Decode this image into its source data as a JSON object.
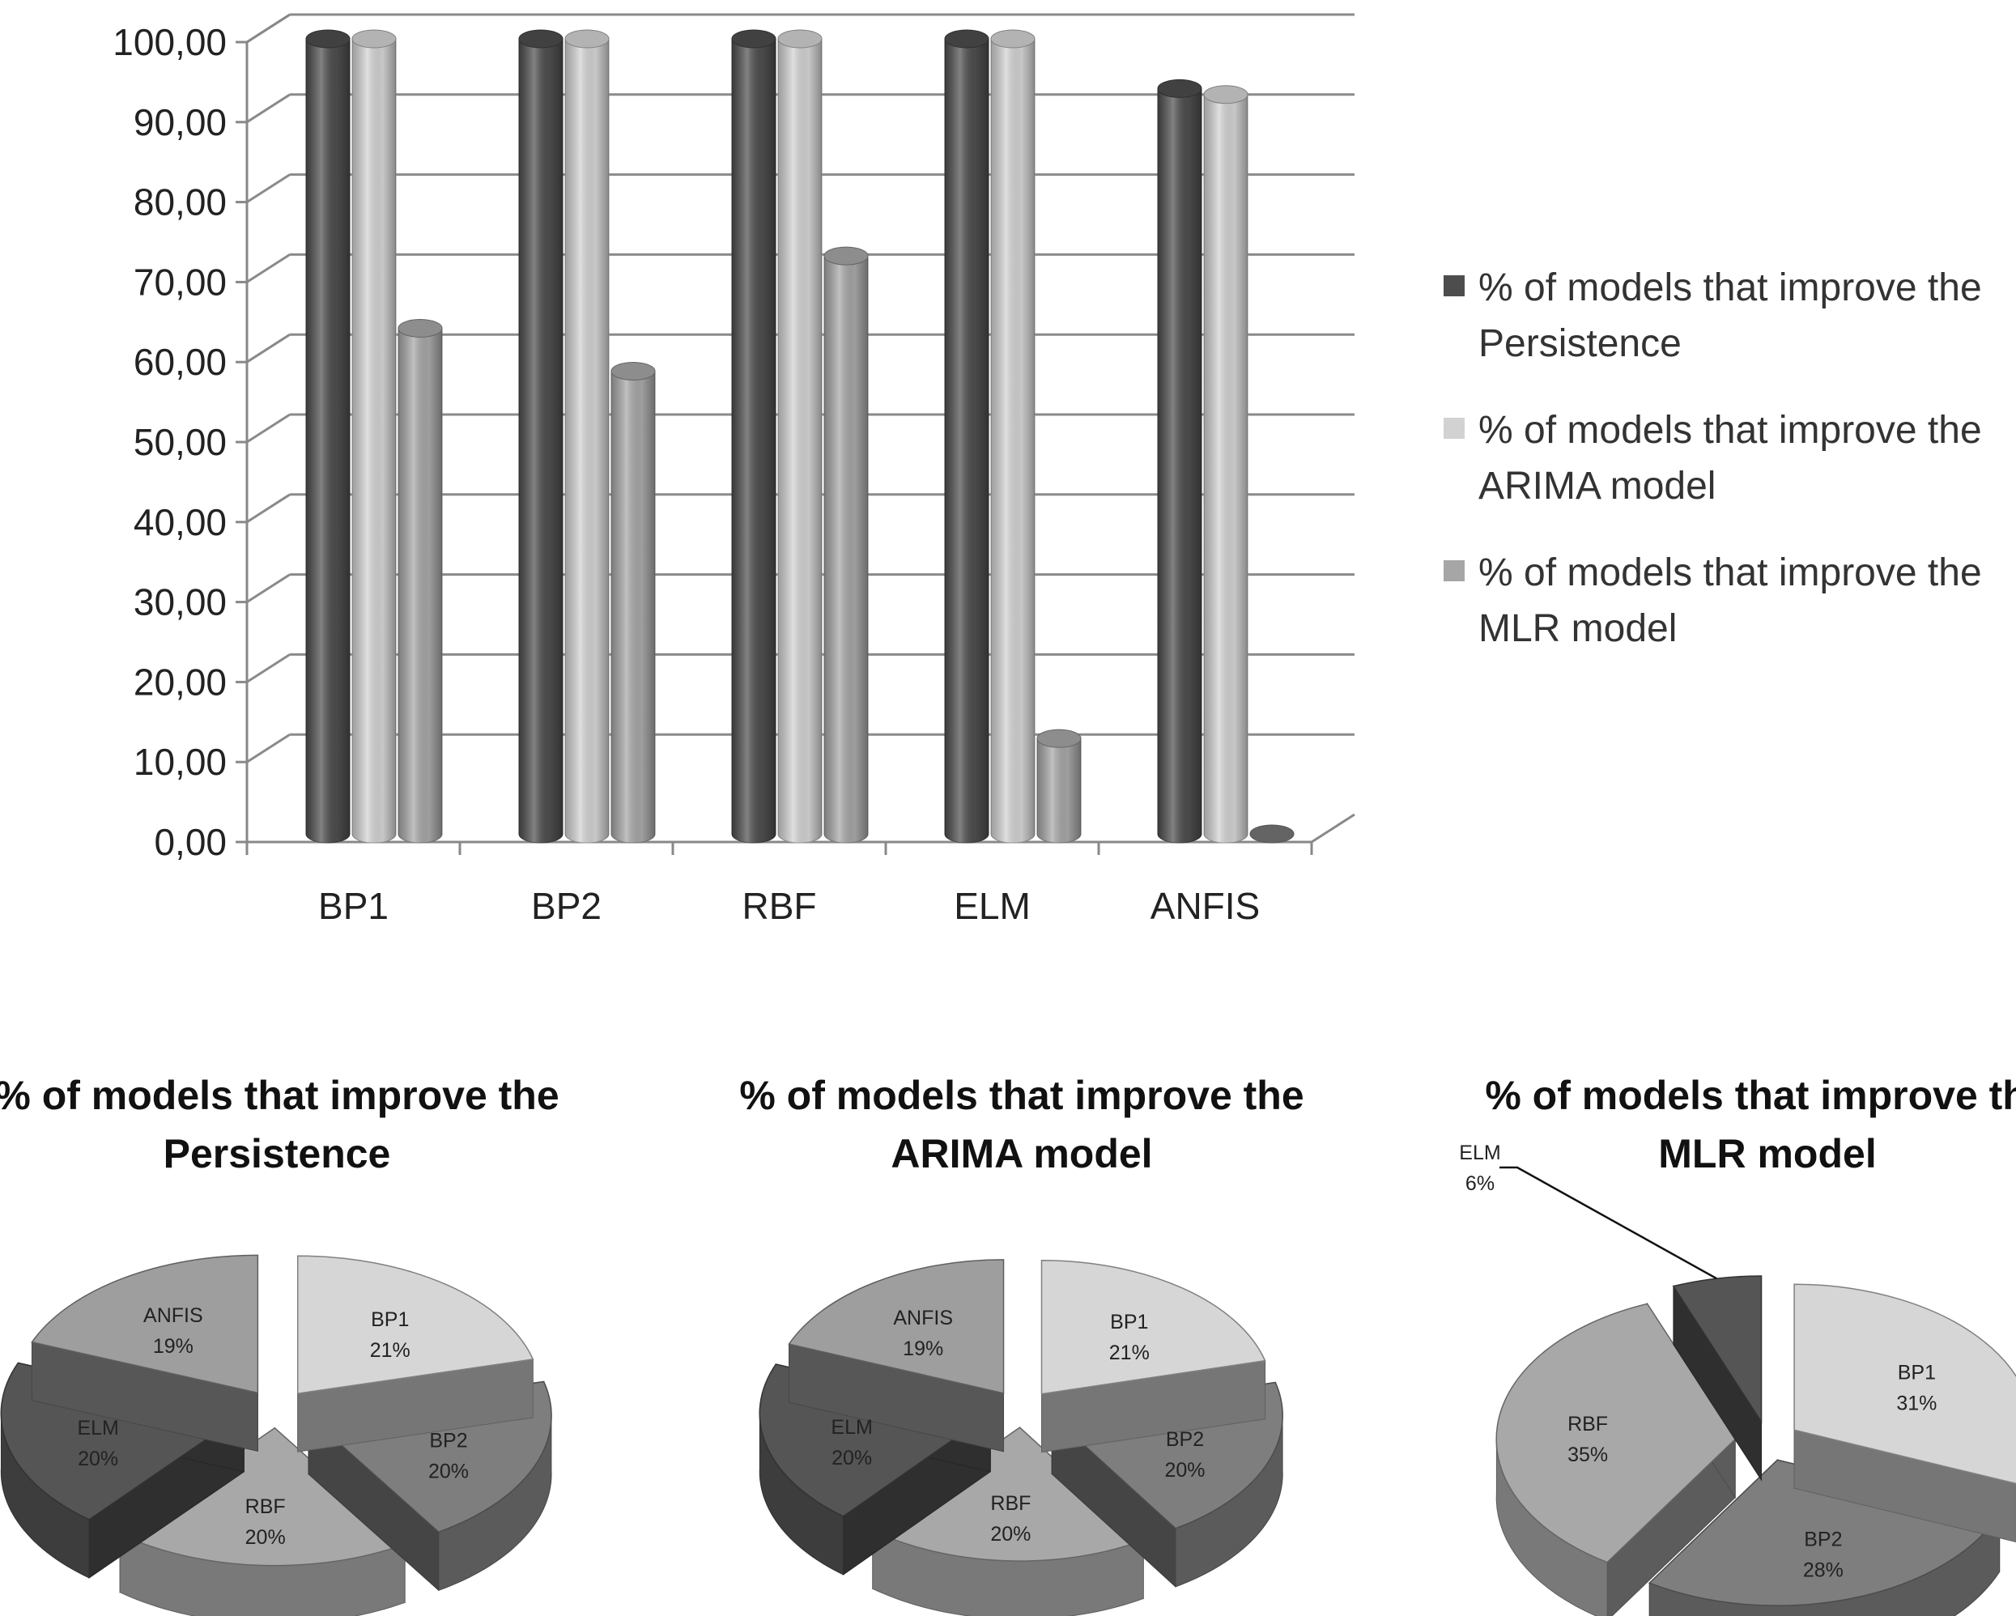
{
  "colors": {
    "series": [
      "#4d4d4d",
      "#d2d2d2",
      "#a6a6a6"
    ],
    "grid": "#8a8a8a",
    "pie_slices": {
      "BP1": "#d6d6d6",
      "BP2": "#7e7e7e",
      "RBF": "#a8a8a8",
      "ELM": "#555555",
      "ANFIS": "#9e9e9e"
    }
  },
  "chart_data": [
    {
      "type": "bar",
      "style": "3d-cylinder",
      "categories": [
        "BP1",
        "BP2",
        "RBF",
        "ELM",
        "ANFIS"
      ],
      "y_tick_labels": [
        "0,00",
        "10,00",
        "20,00",
        "30,00",
        "40,00",
        "50,00",
        "60,00",
        "70,00",
        "80,00",
        "90,00",
        "100,00"
      ],
      "ylim": [
        0,
        100
      ],
      "grid": true,
      "legend_position": "right",
      "series": [
        {
          "name": "% of models that improve the Persistence",
          "legend_lines": [
            "% of models that improve the",
            "Persistence"
          ],
          "values": [
            100,
            100,
            100,
            100,
            93.75
          ]
        },
        {
          "name": "% of models that improve the ARIMA model",
          "legend_lines": [
            "% of models that improve the",
            "ARIMA model"
          ],
          "values": [
            100,
            100,
            100,
            100,
            93
          ]
        },
        {
          "name": "% of models that improve the MLR model",
          "legend_lines": [
            "% of models that improve the",
            "MLR model"
          ],
          "values": [
            63.6,
            58.2,
            72.7,
            12,
            0
          ]
        }
      ]
    },
    {
      "type": "pie",
      "style": "3d-exploded",
      "title_lines": [
        "% of models that improve the",
        "Persistence"
      ],
      "slices": [
        {
          "label": "BP1",
          "percent_label": "21%",
          "value": 21
        },
        {
          "label": "BP2",
          "percent_label": "20%",
          "value": 20
        },
        {
          "label": "RBF",
          "percent_label": "20%",
          "value": 20
        },
        {
          "label": "ELM",
          "percent_label": "20%",
          "value": 20
        },
        {
          "label": "ANFIS",
          "percent_label": "19%",
          "value": 19
        }
      ]
    },
    {
      "type": "pie",
      "style": "3d-exploded",
      "title_lines": [
        "% of models that improve the",
        "ARIMA model"
      ],
      "slices": [
        {
          "label": "BP1",
          "percent_label": "21%",
          "value": 21
        },
        {
          "label": "BP2",
          "percent_label": "20%",
          "value": 20
        },
        {
          "label": "RBF",
          "percent_label": "20%",
          "value": 20
        },
        {
          "label": "ELM",
          "percent_label": "20%",
          "value": 20
        },
        {
          "label": "ANFIS",
          "percent_label": "19%",
          "value": 19
        }
      ]
    },
    {
      "type": "pie",
      "style": "3d-exploded",
      "title_lines": [
        "% of models that improve the",
        "MLR model"
      ],
      "slices": [
        {
          "label": "BP1",
          "percent_label": "31%",
          "value": 31
        },
        {
          "label": "BP2",
          "percent_label": "28%",
          "value": 28
        },
        {
          "label": "RBF",
          "percent_label": "35%",
          "value": 35
        },
        {
          "label": "ELM",
          "percent_label": "6%",
          "value": 6
        }
      ]
    }
  ]
}
